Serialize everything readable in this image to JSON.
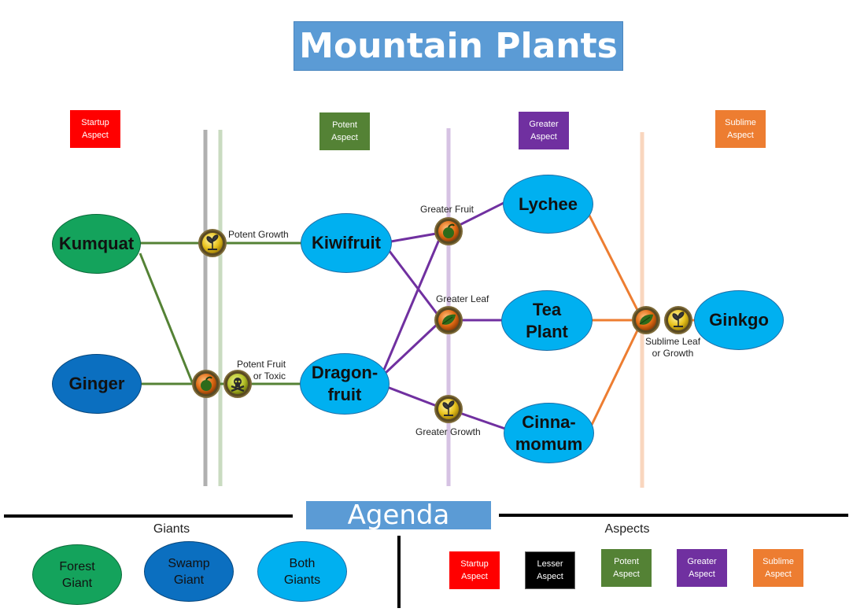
{
  "title": "Mountain Plants",
  "colors": {
    "startup": "#ff0000",
    "lesser": "#000000",
    "potent": "#548235",
    "greater": "#7030a0",
    "sublime": "#ed7d31",
    "forest_giant": "#14a35c",
    "swamp_giant": "#0b6fc0",
    "both_giants": "#00b0f0",
    "title_bg": "#5b9bd5"
  },
  "column_headers": {
    "startup": "Startup\nAspect",
    "potent": "Potent\nAspect",
    "greater": "Greater\nAspect",
    "sublime": "Sublime\nAspect"
  },
  "nodes": {
    "kumquat": {
      "label": "Kumquat",
      "giant": "forest"
    },
    "ginger": {
      "label": "Ginger",
      "giant": "swamp"
    },
    "kiwifruit": {
      "label": "Kiwifruit",
      "giant": "both"
    },
    "dragonfruit": {
      "label": "Dragon-\nfruit",
      "giant": "both"
    },
    "lychee": {
      "label": "Lychee",
      "giant": "both"
    },
    "tea_plant": {
      "label": "Tea\nPlant",
      "giant": "both"
    },
    "cinnamomum": {
      "label": "Cinna-\nmomum",
      "giant": "both"
    },
    "ginkgo": {
      "label": "Ginkgo",
      "giant": "both"
    }
  },
  "edge_labels": {
    "potent_growth": "Potent Growth",
    "potent_fruit_or_toxic": "Potent Fruit\nor Toxic",
    "greater_fruit": "Greater Fruit",
    "greater_leaf": "Greater Leaf",
    "greater_growth": "Greater Growth",
    "sublime_leaf_or_growth": "Sublime Leaf\nor Growth"
  },
  "badges": [
    {
      "icon": "growth-icon",
      "tier": "potent"
    },
    {
      "icon": "fruit-icon",
      "tier": "potent"
    },
    {
      "icon": "toxic-icon",
      "tier": "potent"
    },
    {
      "icon": "fruit-icon",
      "tier": "greater"
    },
    {
      "icon": "leaf-icon",
      "tier": "greater"
    },
    {
      "icon": "growth-icon",
      "tier": "greater"
    },
    {
      "icon": "leaf-icon",
      "tier": "sublime"
    },
    {
      "icon": "growth-icon",
      "tier": "sublime"
    }
  ],
  "agenda": {
    "title": "Agenda",
    "giants_heading": "Giants",
    "aspects_heading": "Aspects",
    "giants": [
      {
        "label": "Forest\nGiant",
        "color": "#14a35c"
      },
      {
        "label": "Swamp\nGiant",
        "color": "#0b6fc0"
      },
      {
        "label": "Both\nGiants",
        "color": "#00b0f0"
      }
    ],
    "aspects": [
      {
        "label": "Startup\nAspect",
        "color": "#ff0000"
      },
      {
        "label": "Lesser\nAspect",
        "color": "#000000"
      },
      {
        "label": "Potent\nAspect",
        "color": "#548235"
      },
      {
        "label": "Greater\nAspect",
        "color": "#7030a0"
      },
      {
        "label": "Sublime\nAspect",
        "color": "#ed7d31"
      }
    ]
  }
}
